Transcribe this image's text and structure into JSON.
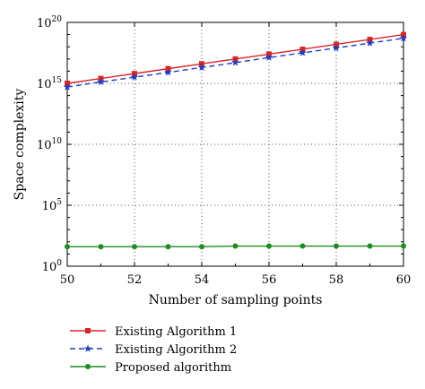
{
  "chart_data": {
    "type": "line",
    "xlabel": "Number of sampling points",
    "ylabel": "Space complexity",
    "xlim": [
      50,
      60
    ],
    "ylim": [
      1,
      1e+20
    ],
    "y_scale": "log",
    "grid": true,
    "grid_style": "dotted",
    "legend_position": "below",
    "x": [
      50,
      51,
      52,
      53,
      54,
      55,
      56,
      57,
      58,
      59,
      60
    ],
    "x_ticks": [
      {
        "value": 50,
        "label": "50"
      },
      {
        "value": 52,
        "label": "52"
      },
      {
        "value": 54,
        "label": "54"
      },
      {
        "value": 56,
        "label": "56"
      },
      {
        "value": 58,
        "label": "58"
      },
      {
        "value": 60,
        "label": "60"
      }
    ],
    "y_ticks": [
      {
        "exp": 0,
        "base": "10",
        "sup": "0"
      },
      {
        "exp": 5,
        "base": "10",
        "sup": "5"
      },
      {
        "exp": 10,
        "base": "10",
        "sup": "10"
      },
      {
        "exp": 15,
        "base": "10",
        "sup": "15"
      },
      {
        "exp": 20,
        "base": "10",
        "sup": "20"
      }
    ],
    "series": [
      {
        "name": "Existing Algorithm 1",
        "color": "#d62728",
        "line_style": "solid",
        "marker": "square",
        "values": [
          1000000000000000.0,
          2500000000000000.0,
          6300000000000000.0,
          1.6e+16,
          4e+16,
          1e+17,
          2.5e+17,
          6.3e+17,
          1.6e+18,
          4e+18,
          1e+19
        ]
      },
      {
        "name": "Existing Algorithm 2",
        "color": "#1f3fbf",
        "line_style": "dashed",
        "marker": "star",
        "values": [
          500000000000000.0,
          1300000000000000.0,
          3200000000000000.0,
          7900000000000000.0,
          2e+16,
          5e+16,
          1.3e+17,
          3.2e+17,
          7.9e+17,
          2e+18,
          5e+18
        ]
      },
      {
        "name": "Proposed algorithm",
        "color": "#1e8c1e",
        "line_style": "solid",
        "marker": "circle",
        "values": [
          40,
          40,
          40,
          40,
          40,
          45,
          45,
          45,
          45,
          45,
          45
        ]
      }
    ]
  }
}
